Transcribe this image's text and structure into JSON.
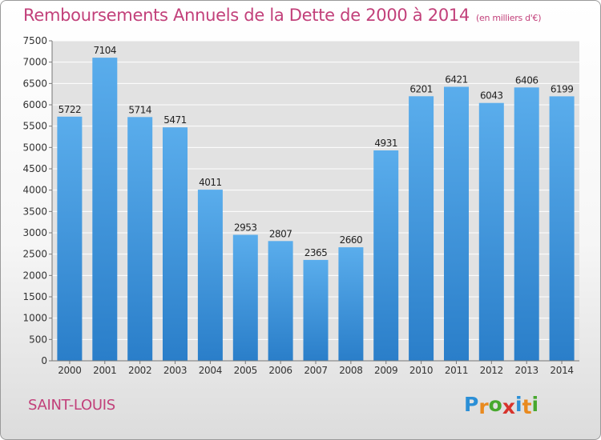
{
  "chart_data": {
    "type": "bar",
    "title": "Remboursements Annuels de la Dette de 2000 à 2014",
    "subtitle": "(en milliers d'€)",
    "categories": [
      "2000",
      "2001",
      "2002",
      "2003",
      "2004",
      "2005",
      "2006",
      "2007",
      "2008",
      "2009",
      "2010",
      "2011",
      "2012",
      "2013",
      "2014"
    ],
    "values": [
      5722,
      7104,
      5714,
      5471,
      4011,
      2953,
      2807,
      2365,
      2660,
      4931,
      6201,
      6421,
      6043,
      6406,
      6199
    ],
    "yticks": [
      0,
      500,
      1000,
      1500,
      2000,
      2500,
      3000,
      3500,
      4000,
      4500,
      5000,
      5500,
      6000,
      6500,
      7000,
      7500
    ],
    "ylim": [
      0,
      7500
    ],
    "xlabel": "",
    "ylabel": "",
    "grid": true,
    "colors": {
      "bar_top": "#5aadec",
      "bar_bottom": "#2a7ec9",
      "plot_bg": "#e2e2e2",
      "grid": "#ffffff",
      "title": "#c2407a"
    }
  },
  "footer": {
    "city": "SAINT-LOUIS",
    "logo_letters": [
      "P",
      "r",
      "o",
      "x",
      "i",
      "t",
      "i"
    ],
    "logo_colors": [
      "#2b8fd6",
      "#e98a1f",
      "#48a82e",
      "#d7332c",
      "#2b8fd6",
      "#e98a1f",
      "#48a82e"
    ]
  }
}
